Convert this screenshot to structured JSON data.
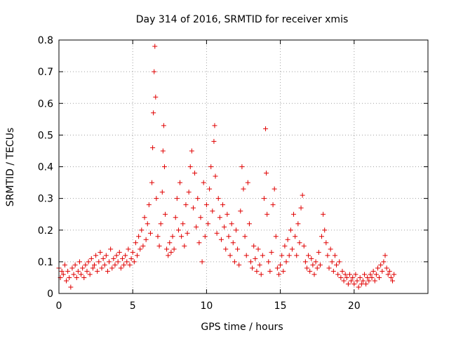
{
  "chart_data": {
    "type": "scatter",
    "title": "Day 314 of 2016, SRMTID for receiver xmis",
    "xlabel": "GPS time / hours",
    "ylabel": "SRMTID / TECUs",
    "xlim": [
      0,
      25
    ],
    "ylim": [
      0,
      0.8
    ],
    "x_ticks": [
      0,
      5,
      10,
      15,
      20
    ],
    "y_ticks": [
      0,
      0.1,
      0.2,
      0.3,
      0.4,
      0.5,
      0.6,
      0.7,
      0.8
    ],
    "x_tick_labels": [
      "0",
      "5",
      "10",
      "15",
      "20"
    ],
    "y_tick_labels": [
      "0",
      "0.1",
      "0.2",
      "0.3",
      "0.4",
      "0.5",
      "0.6",
      "0.7",
      "0.8"
    ],
    "grid": true,
    "marker": "+",
    "series": [
      {
        "name": "SRMTID",
        "color": "#e00000",
        "points": [
          [
            0.0,
            0.08
          ],
          [
            0.1,
            0.05
          ],
          [
            0.2,
            0.07
          ],
          [
            0.3,
            0.06
          ],
          [
            0.4,
            0.09
          ],
          [
            0.5,
            0.04
          ],
          [
            0.6,
            0.07
          ],
          [
            0.7,
            0.05
          ],
          [
            0.8,
            0.02
          ],
          [
            0.9,
            0.08
          ],
          [
            1.0,
            0.06
          ],
          [
            1.1,
            0.09
          ],
          [
            1.2,
            0.05
          ],
          [
            1.3,
            0.07
          ],
          [
            1.4,
            0.1
          ],
          [
            1.5,
            0.06
          ],
          [
            1.6,
            0.08
          ],
          [
            1.7,
            0.05
          ],
          [
            1.8,
            0.09
          ],
          [
            1.9,
            0.07
          ],
          [
            2.0,
            0.1
          ],
          [
            2.1,
            0.06
          ],
          [
            2.2,
            0.11
          ],
          [
            2.3,
            0.08
          ],
          [
            2.4,
            0.09
          ],
          [
            2.5,
            0.12
          ],
          [
            2.6,
            0.07
          ],
          [
            2.7,
            0.1
          ],
          [
            2.8,
            0.13
          ],
          [
            2.9,
            0.08
          ],
          [
            3.0,
            0.11
          ],
          [
            3.1,
            0.09
          ],
          [
            3.2,
            0.12
          ],
          [
            3.3,
            0.07
          ],
          [
            3.4,
            0.1
          ],
          [
            3.5,
            0.14
          ],
          [
            3.6,
            0.08
          ],
          [
            3.7,
            0.11
          ],
          [
            3.8,
            0.09
          ],
          [
            3.9,
            0.12
          ],
          [
            4.0,
            0.1
          ],
          [
            4.1,
            0.13
          ],
          [
            4.2,
            0.08
          ],
          [
            4.3,
            0.11
          ],
          [
            4.4,
            0.09
          ],
          [
            4.5,
            0.12
          ],
          [
            4.6,
            0.1
          ],
          [
            4.7,
            0.14
          ],
          [
            4.8,
            0.09
          ],
          [
            4.9,
            0.11
          ],
          [
            5.0,
            0.13
          ],
          [
            5.1,
            0.1
          ],
          [
            5.2,
            0.16
          ],
          [
            5.3,
            0.12
          ],
          [
            5.4,
            0.18
          ],
          [
            5.5,
            0.14
          ],
          [
            5.6,
            0.2
          ],
          [
            5.7,
            0.15
          ],
          [
            5.8,
            0.24
          ],
          [
            5.9,
            0.17
          ],
          [
            6.0,
            0.22
          ],
          [
            6.1,
            0.28
          ],
          [
            6.2,
            0.19
          ],
          [
            6.3,
            0.35
          ],
          [
            6.35,
            0.46
          ],
          [
            6.4,
            0.57
          ],
          [
            6.45,
            0.7
          ],
          [
            6.5,
            0.78
          ],
          [
            6.55,
            0.62
          ],
          [
            6.6,
            0.3
          ],
          [
            6.7,
            0.18
          ],
          [
            6.8,
            0.15
          ],
          [
            6.9,
            0.22
          ],
          [
            7.0,
            0.32
          ],
          [
            7.05,
            0.45
          ],
          [
            7.1,
            0.53
          ],
          [
            7.15,
            0.4
          ],
          [
            7.2,
            0.25
          ],
          [
            7.3,
            0.14
          ],
          [
            7.4,
            0.12
          ],
          [
            7.5,
            0.16
          ],
          [
            7.6,
            0.13
          ],
          [
            7.7,
            0.18
          ],
          [
            7.8,
            0.14
          ],
          [
            7.9,
            0.24
          ],
          [
            8.0,
            0.3
          ],
          [
            8.1,
            0.2
          ],
          [
            8.2,
            0.35
          ],
          [
            8.3,
            0.18
          ],
          [
            8.4,
            0.22
          ],
          [
            8.5,
            0.15
          ],
          [
            8.6,
            0.28
          ],
          [
            8.7,
            0.19
          ],
          [
            8.8,
            0.32
          ],
          [
            8.9,
            0.4
          ],
          [
            9.0,
            0.45
          ],
          [
            9.1,
            0.27
          ],
          [
            9.2,
            0.38
          ],
          [
            9.3,
            0.21
          ],
          [
            9.4,
            0.3
          ],
          [
            9.5,
            0.16
          ],
          [
            9.6,
            0.24
          ],
          [
            9.7,
            0.1
          ],
          [
            9.8,
            0.35
          ],
          [
            9.9,
            0.18
          ],
          [
            10.0,
            0.28
          ],
          [
            10.1,
            0.22
          ],
          [
            10.2,
            0.33
          ],
          [
            10.3,
            0.4
          ],
          [
            10.4,
            0.26
          ],
          [
            10.5,
            0.48
          ],
          [
            10.55,
            0.53
          ],
          [
            10.6,
            0.37
          ],
          [
            10.7,
            0.19
          ],
          [
            10.8,
            0.3
          ],
          [
            10.9,
            0.24
          ],
          [
            11.0,
            0.17
          ],
          [
            11.1,
            0.28
          ],
          [
            11.2,
            0.21
          ],
          [
            11.3,
            0.14
          ],
          [
            11.4,
            0.25
          ],
          [
            11.5,
            0.18
          ],
          [
            11.6,
            0.12
          ],
          [
            11.7,
            0.22
          ],
          [
            11.8,
            0.16
          ],
          [
            11.9,
            0.1
          ],
          [
            12.0,
            0.2
          ],
          [
            12.1,
            0.14
          ],
          [
            12.2,
            0.09
          ],
          [
            12.3,
            0.26
          ],
          [
            12.4,
            0.4
          ],
          [
            12.5,
            0.33
          ],
          [
            12.6,
            0.18
          ],
          [
            12.7,
            0.12
          ],
          [
            12.8,
            0.35
          ],
          [
            12.9,
            0.22
          ],
          [
            13.0,
            0.1
          ],
          [
            13.1,
            0.08
          ],
          [
            13.2,
            0.15
          ],
          [
            13.3,
            0.11
          ],
          [
            13.4,
            0.07
          ],
          [
            13.5,
            0.14
          ],
          [
            13.6,
            0.09
          ],
          [
            13.7,
            0.06
          ],
          [
            13.8,
            0.12
          ],
          [
            13.9,
            0.3
          ],
          [
            14.0,
            0.52
          ],
          [
            14.05,
            0.38
          ],
          [
            14.1,
            0.25
          ],
          [
            14.2,
            0.1
          ],
          [
            14.3,
            0.07
          ],
          [
            14.4,
            0.13
          ],
          [
            14.5,
            0.28
          ],
          [
            14.6,
            0.33
          ],
          [
            14.7,
            0.18
          ],
          [
            14.8,
            0.08
          ],
          [
            14.9,
            0.06
          ],
          [
            15.0,
            0.09
          ],
          [
            15.1,
            0.12
          ],
          [
            15.2,
            0.07
          ],
          [
            15.3,
            0.15
          ],
          [
            15.4,
            0.1
          ],
          [
            15.5,
            0.17
          ],
          [
            15.6,
            0.12
          ],
          [
            15.7,
            0.2
          ],
          [
            15.8,
            0.14
          ],
          [
            15.9,
            0.25
          ],
          [
            16.0,
            0.18
          ],
          [
            16.1,
            0.12
          ],
          [
            16.2,
            0.22
          ],
          [
            16.3,
            0.16
          ],
          [
            16.4,
            0.27
          ],
          [
            16.5,
            0.31
          ],
          [
            16.6,
            0.15
          ],
          [
            16.7,
            0.1
          ],
          [
            16.8,
            0.08
          ],
          [
            16.9,
            0.12
          ],
          [
            17.0,
            0.07
          ],
          [
            17.1,
            0.11
          ],
          [
            17.2,
            0.09
          ],
          [
            17.3,
            0.06
          ],
          [
            17.4,
            0.1
          ],
          [
            17.5,
            0.08
          ],
          [
            17.6,
            0.13
          ],
          [
            17.7,
            0.09
          ],
          [
            17.8,
            0.18
          ],
          [
            17.9,
            0.25
          ],
          [
            18.0,
            0.2
          ],
          [
            18.1,
            0.16
          ],
          [
            18.2,
            0.12
          ],
          [
            18.3,
            0.08
          ],
          [
            18.4,
            0.14
          ],
          [
            18.5,
            0.1
          ],
          [
            18.6,
            0.07
          ],
          [
            18.7,
            0.12
          ],
          [
            18.8,
            0.09
          ],
          [
            18.9,
            0.06
          ],
          [
            19.0,
            0.1
          ],
          [
            19.1,
            0.05
          ],
          [
            19.2,
            0.07
          ],
          [
            19.3,
            0.04
          ],
          [
            19.4,
            0.06
          ],
          [
            19.5,
            0.05
          ],
          [
            19.6,
            0.03
          ],
          [
            19.7,
            0.06
          ],
          [
            19.8,
            0.04
          ],
          [
            19.9,
            0.05
          ],
          [
            20.0,
            0.03
          ],
          [
            20.1,
            0.06
          ],
          [
            20.2,
            0.04
          ],
          [
            20.3,
            0.02
          ],
          [
            20.4,
            0.05
          ],
          [
            20.5,
            0.03
          ],
          [
            20.6,
            0.04
          ],
          [
            20.7,
            0.06
          ],
          [
            20.8,
            0.03
          ],
          [
            20.9,
            0.05
          ],
          [
            21.0,
            0.04
          ],
          [
            21.1,
            0.06
          ],
          [
            21.2,
            0.05
          ],
          [
            21.3,
            0.07
          ],
          [
            21.4,
            0.04
          ],
          [
            21.5,
            0.06
          ],
          [
            21.6,
            0.08
          ],
          [
            21.7,
            0.05
          ],
          [
            21.8,
            0.09
          ],
          [
            21.9,
            0.07
          ],
          [
            22.0,
            0.1
          ],
          [
            22.1,
            0.12
          ],
          [
            22.2,
            0.08
          ],
          [
            22.3,
            0.06
          ],
          [
            22.4,
            0.07
          ],
          [
            22.5,
            0.05
          ],
          [
            22.6,
            0.04
          ],
          [
            22.7,
            0.06
          ]
        ]
      }
    ]
  }
}
